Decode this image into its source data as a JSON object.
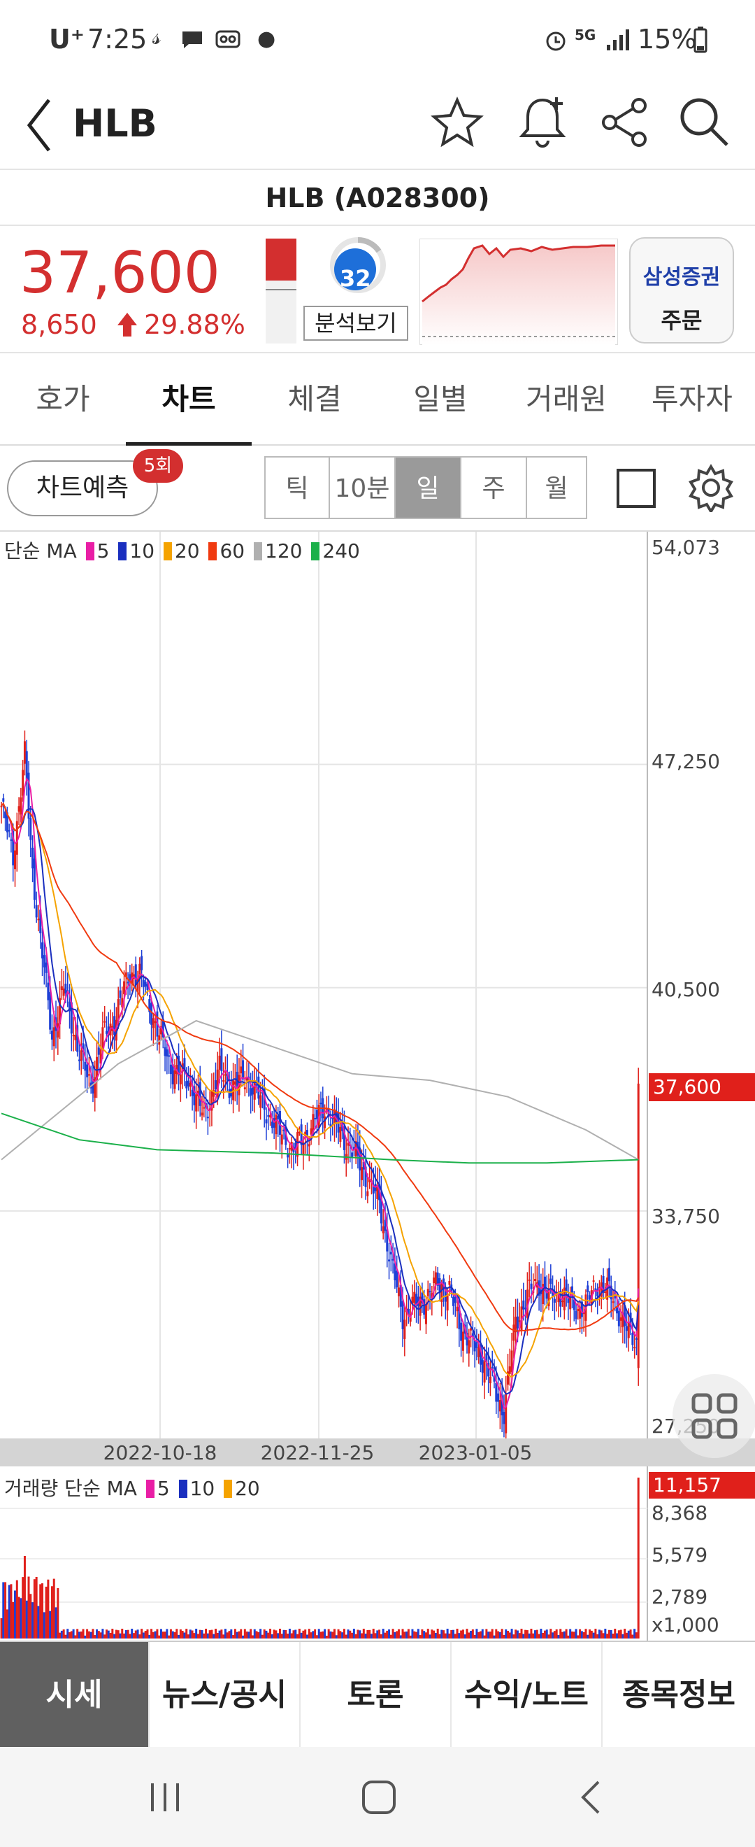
{
  "status": {
    "carrier": "U⁺",
    "time": "7:25",
    "network": "5G",
    "battery": "15%",
    "icons": [
      "signal-icon",
      "alarm-icon",
      "wifi-icon",
      "battery-icon"
    ]
  },
  "app": {
    "title": "HLB",
    "icons": [
      "back-icon",
      "star-icon",
      "bell-plus-icon",
      "share-icon",
      "search-icon"
    ]
  },
  "stock": {
    "name_code": "HLB (A028300)",
    "price": "37,600",
    "change": "8,650",
    "change_pct": "29.88%",
    "score": "32",
    "analysis_label": "분석보기",
    "broker": "삼성증권",
    "order_label": "주문",
    "accent": "#d32f2f",
    "score_color": "#1e6fd9"
  },
  "tabs": [
    {
      "label": "호가"
    },
    {
      "label": "차트"
    },
    {
      "label": "체결"
    },
    {
      "label": "일별"
    },
    {
      "label": "거래원"
    },
    {
      "label": "투자자"
    }
  ],
  "toolbar": {
    "predict_label": "차트예측",
    "predict_badge": "5회",
    "periods": [
      {
        "label": "틱"
      },
      {
        "label": "10분"
      },
      {
        "label": "일"
      },
      {
        "label": "주"
      },
      {
        "label": "월"
      }
    ]
  },
  "main_legend": {
    "title": "단순 MA",
    "items": [
      {
        "v": "5",
        "c": "#e91ea5"
      },
      {
        "v": "10",
        "c": "#1a2fbf"
      },
      {
        "v": "20",
        "c": "#f5a300"
      },
      {
        "v": "60",
        "c": "#f03a10"
      },
      {
        "v": "120",
        "c": "#b0b0b0"
      },
      {
        "v": "240",
        "c": "#1bb04a"
      }
    ]
  },
  "vol_legend": {
    "title": "거래량 단순 MA",
    "items": [
      {
        "v": "5",
        "c": "#e91ea5"
      },
      {
        "v": "10",
        "c": "#1a2fbf"
      },
      {
        "v": "20",
        "c": "#f5a300"
      }
    ]
  },
  "bottom_nav": [
    {
      "label": "시세"
    },
    {
      "label": "뉴스/공시"
    },
    {
      "label": "토론"
    },
    {
      "label": "수익/노트"
    },
    {
      "label": "종목정보"
    }
  ],
  "chart_data": {
    "type": "candlestick",
    "y_ticks": [
      "54,073",
      "47,250",
      "40,500",
      "33,750",
      "27,250"
    ],
    "current_price_label": "37,600",
    "x_ticks": [
      "2022-10-18",
      "2022-11-25",
      "2023-01-05"
    ],
    "volume_ticks": [
      "8,368",
      "5,579",
      "2,789",
      "x1,000"
    ],
    "volume_current_label": "11,157",
    "ylim": [
      27000,
      54073
    ],
    "last_close": 37600
  }
}
